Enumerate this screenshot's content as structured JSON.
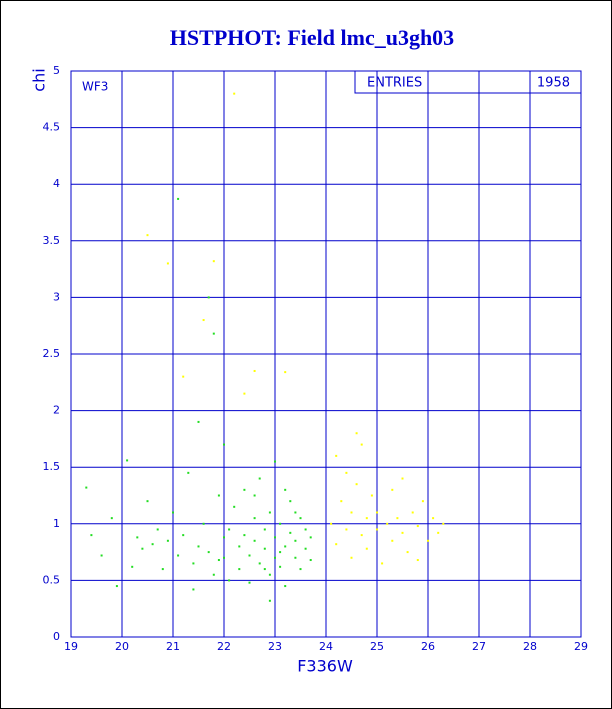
{
  "chart_data": {
    "type": "scatter",
    "title": "HSTPHOT: Field lmc_u3gh03",
    "x_label": "F336W",
    "y_label": "chi",
    "annotation": "WF3",
    "stats": {
      "label": "ENTRIES",
      "value": 1958
    },
    "xlim": [
      19,
      29
    ],
    "ylim": [
      0,
      5
    ],
    "xticks": [
      19,
      20,
      21,
      22,
      23,
      24,
      25,
      26,
      27,
      28,
      29
    ],
    "yticks": [
      0,
      0.5,
      1,
      1.5,
      2,
      2.5,
      3,
      3.5,
      4,
      4.5,
      5
    ],
    "grid": true,
    "series": [
      {
        "color": "#22dd22",
        "x": [
          19.3,
          19.4,
          19.6,
          19.8,
          19.9,
          20.1,
          20.2,
          20.3,
          20.4,
          20.5,
          20.6,
          20.7,
          20.8,
          20.9,
          21.0,
          21.1,
          21.2,
          21.3,
          21.4,
          21.5,
          21.6,
          21.7,
          21.8,
          21.9,
          22.0,
          22.1,
          22.1,
          22.2,
          22.3,
          22.3,
          22.4,
          22.4,
          22.5,
          22.5,
          22.6,
          22.6,
          22.7,
          22.7,
          22.8,
          22.8,
          22.9,
          22.9,
          23.0,
          23.0,
          23.0,
          23.1,
          23.1,
          23.2,
          23.2,
          23.3,
          23.3,
          23.4,
          23.4,
          23.5,
          23.5,
          23.6,
          23.6,
          23.7,
          23.7,
          22.9,
          23.2,
          22.6,
          21.9,
          22.0,
          23.4,
          23.1,
          22.8,
          21.7,
          21.8,
          21.1,
          21.5,
          22.0,
          21.4
        ],
        "y": [
          1.32,
          0.9,
          0.72,
          1.05,
          0.45,
          1.56,
          0.62,
          0.88,
          0.78,
          1.2,
          0.82,
          0.95,
          0.6,
          0.85,
          1.1,
          0.72,
          0.9,
          1.45,
          0.65,
          0.8,
          1.0,
          0.75,
          0.55,
          1.25,
          0.7,
          0.95,
          0.5,
          1.15,
          0.8,
          0.6,
          0.9,
          1.3,
          0.72,
          0.48,
          1.05,
          0.85,
          0.65,
          1.4,
          0.78,
          0.95,
          0.55,
          1.1,
          0.7,
          0.88,
          1.55,
          0.62,
          1.0,
          0.8,
          0.45,
          0.92,
          1.2,
          0.7,
          0.85,
          1.05,
          0.6,
          0.78,
          0.95,
          0.68,
          0.88,
          0.32,
          1.3,
          1.25,
          0.68,
          0.88,
          1.1,
          0.75,
          0.6,
          3.0,
          2.68,
          3.87,
          1.9,
          1.7,
          0.42
        ]
      },
      {
        "color": "#ffff00",
        "x": [
          24.1,
          24.2,
          24.3,
          24.4,
          24.5,
          24.5,
          24.6,
          24.7,
          24.8,
          24.8,
          24.9,
          25.0,
          25.0,
          25.1,
          25.2,
          25.3,
          25.3,
          25.4,
          25.5,
          25.5,
          25.6,
          25.7,
          25.8,
          25.9,
          26.0,
          26.1,
          26.2,
          26.3,
          24.4,
          25.8,
          24.2,
          24.6,
          24.7,
          22.2,
          20.5,
          20.9,
          21.8,
          22.6,
          23.2,
          22.4,
          21.2,
          21.6
        ],
        "y": [
          1.0,
          0.82,
          1.2,
          0.95,
          1.1,
          0.7,
          1.35,
          0.9,
          1.05,
          0.78,
          1.25,
          0.95,
          1.1,
          0.65,
          1.0,
          1.3,
          0.85,
          1.05,
          0.92,
          1.4,
          0.75,
          1.1,
          0.98,
          1.2,
          0.85,
          1.05,
          0.92,
          1.0,
          1.45,
          0.68,
          1.6,
          1.8,
          1.7,
          4.8,
          3.55,
          3.3,
          3.32,
          2.35,
          2.34,
          2.15,
          2.3,
          2.8
        ]
      }
    ]
  }
}
